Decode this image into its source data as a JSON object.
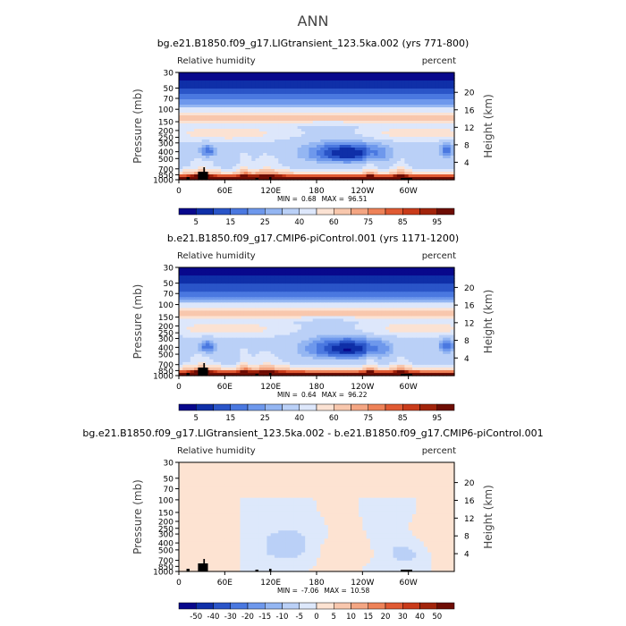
{
  "figure_title": "ANN",
  "chart_data": [
    {
      "type": "heatmap",
      "title": "bg.e21.B1850.f09_g17.LIGtransient_123.5ka.002 (yrs 771-800)",
      "variable_label": "Relative humidity",
      "units_label": "percent",
      "ylabel": "Pressure (mb)",
      "ylabel_right": "Height (km)",
      "xticks": [
        "0",
        "60E",
        "120E",
        "180",
        "120W",
        "60W"
      ],
      "yticks": [
        "30",
        "50",
        "70",
        "100",
        "150",
        "200",
        "250",
        "300",
        "400",
        "500",
        "700",
        "850",
        "1000"
      ],
      "height_ticks": [
        "20",
        "16",
        "12",
        "8",
        "4"
      ],
      "min_label": "MIN =",
      "min_value": "0.68",
      "max_label": "MAX =",
      "max_value": "96.51",
      "colorbar_labels": [
        "5",
        "15",
        "25",
        "40",
        "60",
        "75",
        "85",
        "95"
      ],
      "colorbar_levels": [
        5,
        10,
        15,
        20,
        25,
        30,
        40,
        50,
        60,
        70,
        75,
        80,
        85,
        90,
        95
      ],
      "colorbar_colors": [
        "#08088c",
        "#0f2fa8",
        "#2a55c8",
        "#4a78e0",
        "#6e98ec",
        "#94b6f2",
        "#bad0f7",
        "#dde7fb",
        "#fbe2d3",
        "#f8c7ad",
        "#f4a683",
        "#ee8258",
        "#e05a33",
        "#c93b1a",
        "#a2240b",
        "#6e0d04"
      ]
    },
    {
      "type": "heatmap",
      "title": "b.e21.B1850.f09_g17.CMIP6-piControl.001 (yrs 1171-1200)",
      "variable_label": "Relative humidity",
      "units_label": "percent",
      "ylabel": "Pressure (mb)",
      "ylabel_right": "Height (km)",
      "xticks": [
        "0",
        "60E",
        "120E",
        "180",
        "120W",
        "60W"
      ],
      "yticks": [
        "30",
        "50",
        "70",
        "100",
        "150",
        "200",
        "250",
        "300",
        "400",
        "500",
        "700",
        "850",
        "1000"
      ],
      "height_ticks": [
        "20",
        "16",
        "12",
        "8",
        "4"
      ],
      "min_label": "MIN =",
      "min_value": "0.64",
      "max_label": "MAX =",
      "max_value": "96.22",
      "colorbar_labels": [
        "5",
        "15",
        "25",
        "40",
        "60",
        "75",
        "85",
        "95"
      ],
      "colorbar_levels": [
        5,
        10,
        15,
        20,
        25,
        30,
        40,
        50,
        60,
        70,
        75,
        80,
        85,
        90,
        95
      ],
      "colorbar_colors": [
        "#08088c",
        "#0f2fa8",
        "#2a55c8",
        "#4a78e0",
        "#6e98ec",
        "#94b6f2",
        "#bad0f7",
        "#dde7fb",
        "#fbe2d3",
        "#f8c7ad",
        "#f4a683",
        "#ee8258",
        "#e05a33",
        "#c93b1a",
        "#a2240b",
        "#6e0d04"
      ]
    },
    {
      "type": "heatmap",
      "title": "bg.e21.B1850.f09_g17.LIGtransient_123.5ka.002 - b.e21.B1850.f09_g17.CMIP6-piControl.001",
      "variable_label": "Relative humidity",
      "units_label": "percent",
      "ylabel": "Pressure (mb)",
      "ylabel_right": "Height (km)",
      "xticks": [
        "0",
        "60E",
        "120E",
        "180",
        "120W",
        "60W"
      ],
      "yticks": [
        "30",
        "50",
        "70",
        "100",
        "150",
        "200",
        "250",
        "300",
        "400",
        "500",
        "700",
        "850",
        "1000"
      ],
      "height_ticks": [
        "20",
        "16",
        "12",
        "8",
        "4"
      ],
      "min_label": "MIN =",
      "min_value": "-7.06",
      "max_label": "MAX =",
      "max_value": "10.58",
      "colorbar_labels": [
        "-50",
        "-40",
        "-30",
        "-20",
        "-15",
        "-10",
        "-5",
        "0",
        "5",
        "10",
        "15",
        "20",
        "30",
        "40",
        "50"
      ],
      "colorbar_levels": [
        -50,
        -40,
        -30,
        -20,
        -15,
        -10,
        -5,
        0,
        5,
        10,
        15,
        20,
        30,
        40,
        50
      ],
      "colorbar_colors": [
        "#08088c",
        "#0f2fa8",
        "#2a55c8",
        "#4a78e0",
        "#6e98ec",
        "#94b6f2",
        "#bad0f7",
        "#dde8fb",
        "#fde3d2",
        "#f8c7ad",
        "#f4a683",
        "#ee8258",
        "#e05a33",
        "#c93b1a",
        "#a2240b",
        "#6e0d04"
      ]
    }
  ]
}
